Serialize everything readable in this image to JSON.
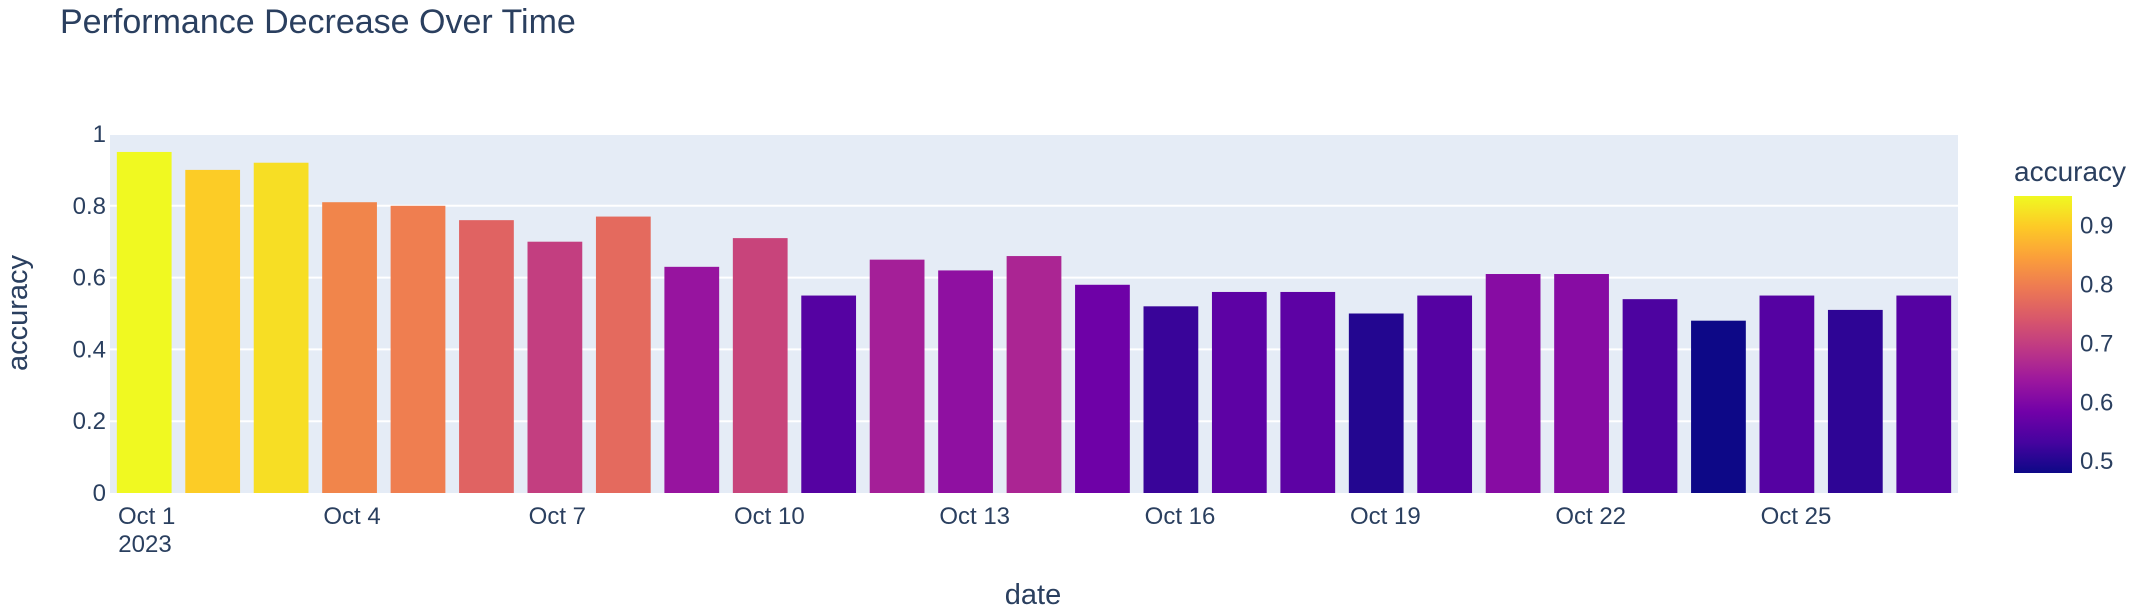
{
  "chart_data": {
    "type": "bar",
    "title": "Performance Decrease Over Time",
    "xlabel": "date",
    "ylabel": "accuracy",
    "x": [
      "2023-10-01",
      "2023-10-02",
      "2023-10-03",
      "2023-10-04",
      "2023-10-05",
      "2023-10-06",
      "2023-10-07",
      "2023-10-08",
      "2023-10-09",
      "2023-10-10",
      "2023-10-11",
      "2023-10-12",
      "2023-10-13",
      "2023-10-14",
      "2023-10-15",
      "2023-10-16",
      "2023-10-17",
      "2023-10-18",
      "2023-10-19",
      "2023-10-20",
      "2023-10-21",
      "2023-10-22",
      "2023-10-23",
      "2023-10-24",
      "2023-10-25",
      "2023-10-26",
      "2023-10-27"
    ],
    "values": [
      0.95,
      0.9,
      0.92,
      0.81,
      0.8,
      0.76,
      0.7,
      0.77,
      0.63,
      0.71,
      0.55,
      0.65,
      0.62,
      0.66,
      0.58,
      0.52,
      0.56,
      0.56,
      0.5,
      0.55,
      0.61,
      0.61,
      0.54,
      0.48,
      0.55,
      0.51,
      0.55
    ],
    "ylim": [
      0,
      1
    ],
    "yticks": [
      "0",
      "0.2",
      "0.4",
      "0.6",
      "0.8",
      "1"
    ],
    "xticks": [
      {
        "date": "2023-10-01",
        "label": "Oct 1",
        "sublabel": "2023"
      },
      {
        "date": "2023-10-04",
        "label": "Oct 4"
      },
      {
        "date": "2023-10-07",
        "label": "Oct 7"
      },
      {
        "date": "2023-10-10",
        "label": "Oct 10"
      },
      {
        "date": "2023-10-13",
        "label": "Oct 13"
      },
      {
        "date": "2023-10-16",
        "label": "Oct 16"
      },
      {
        "date": "2023-10-19",
        "label": "Oct 19"
      },
      {
        "date": "2023-10-22",
        "label": "Oct 22"
      },
      {
        "date": "2023-10-25",
        "label": "Oct 25"
      }
    ],
    "grid": true,
    "colorbar": {
      "title": "accuracy",
      "range": [
        0.48,
        0.95
      ],
      "ticks": [
        "0.5",
        "0.6",
        "0.7",
        "0.8",
        "0.9"
      ],
      "colorscale": [
        "#0d0887",
        "#46039f",
        "#7201a8",
        "#9c179e",
        "#bd3786",
        "#d8576b",
        "#ed7953",
        "#fb9f3a",
        "#fdca26",
        "#f0f921"
      ]
    },
    "colors": {
      "plot_background": "#e5ecf6",
      "grid": "#ffffff",
      "text": "#2a3f5f"
    }
  }
}
